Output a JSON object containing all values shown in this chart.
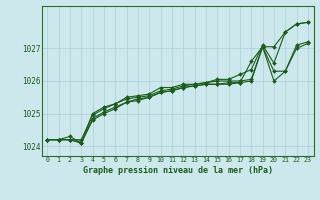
{
  "xlabel": "Graphe pression niveau de la mer (hPa)",
  "background_color": "#cce8ec",
  "grid_color": "#aacdd4",
  "line_color": "#1a5c1a",
  "xlim": [
    -0.5,
    23.5
  ],
  "ylim": [
    1023.7,
    1028.3
  ],
  "yticks": [
    1024,
    1025,
    1026,
    1027
  ],
  "xticks": [
    0,
    1,
    2,
    3,
    4,
    5,
    6,
    7,
    8,
    9,
    10,
    11,
    12,
    13,
    14,
    15,
    16,
    17,
    18,
    19,
    20,
    21,
    22,
    23
  ],
  "series": [
    [
      1024.2,
      1024.2,
      1024.2,
      1024.2,
      1024.95,
      1025.15,
      1025.3,
      1025.45,
      1025.5,
      1025.55,
      1025.7,
      1025.75,
      1025.85,
      1025.9,
      1025.95,
      1026.0,
      1026.0,
      1026.0,
      1026.05,
      1027.05,
      1027.05,
      1027.5,
      1027.75,
      1027.8
    ],
    [
      1024.2,
      1024.2,
      1024.2,
      1024.1,
      1024.85,
      1025.05,
      1025.2,
      1025.35,
      1025.45,
      1025.5,
      1025.65,
      1025.7,
      1025.8,
      1025.85,
      1025.9,
      1025.9,
      1025.95,
      1025.95,
      1026.0,
      1027.05,
      1026.3,
      1026.3,
      1027.1,
      1027.2
    ],
    [
      1024.2,
      1024.2,
      1024.2,
      1024.1,
      1025.0,
      1025.2,
      1025.3,
      1025.5,
      1025.55,
      1025.6,
      1025.8,
      1025.8,
      1025.9,
      1025.9,
      1025.95,
      1026.05,
      1026.05,
      1026.2,
      1026.35,
      1027.1,
      1026.55,
      1027.5,
      1027.75,
      1027.8
    ],
    [
      1024.2,
      1024.2,
      1024.3,
      1024.1,
      1024.8,
      1025.0,
      1025.15,
      1025.35,
      1025.4,
      1025.5,
      1025.65,
      1025.7,
      1025.8,
      1025.85,
      1025.9,
      1025.9,
      1025.9,
      1025.95,
      1026.6,
      1027.05,
      1026.0,
      1026.3,
      1027.0,
      1027.15
    ]
  ]
}
